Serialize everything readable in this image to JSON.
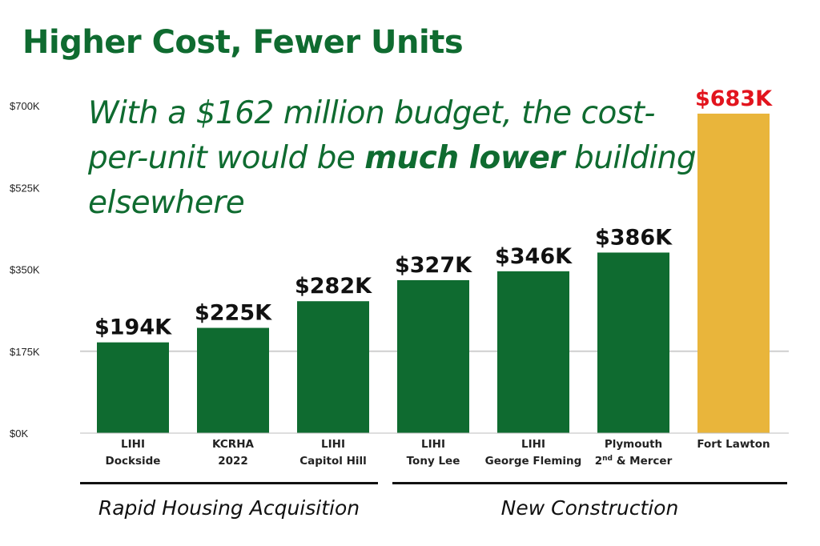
{
  "title": "Higher Cost, Fewer Units",
  "subtitle": {
    "part1": "With a $162 million budget, the cost-per-unit would be ",
    "emphasis": "much lower",
    "part2": " building elsewhere"
  },
  "colors": {
    "primary_bar": "#0f6b30",
    "highlight_bar": "#e9b53b",
    "highlight_label": "#e2141d",
    "title": "#0f6b30"
  },
  "groups": [
    {
      "label": "Rapid Housing Acquisition",
      "categories": [
        0,
        1,
        2
      ]
    },
    {
      "label": "New Construction",
      "categories": [
        3,
        4,
        5,
        6
      ]
    }
  ],
  "chart_data": {
    "type": "bar",
    "categories": [
      [
        "LIHI",
        "Dockside"
      ],
      [
        "KCRHA",
        "2022"
      ],
      [
        "LIHI",
        "Capitol Hill"
      ],
      [
        "LIHI",
        "Tony Lee"
      ],
      [
        "LIHI",
        "George Fleming"
      ],
      [
        "Plymouth",
        "2nd & Mercer"
      ],
      [
        "Fort Lawton"
      ]
    ],
    "values": [
      194,
      225,
      282,
      327,
      346,
      386,
      683
    ],
    "data_labels": [
      "$194K",
      "$225K",
      "$282K",
      "$327K",
      "$346K",
      "$386K",
      "$683K"
    ],
    "highlight_index": 6,
    "y_ticks": [
      "$0K",
      "$175K",
      "$350K",
      "$525K",
      "$700K"
    ],
    "y_tick_values": [
      0,
      175,
      350,
      525,
      700
    ],
    "ylim": [
      0,
      700
    ],
    "grid": true,
    "legend": "none"
  }
}
